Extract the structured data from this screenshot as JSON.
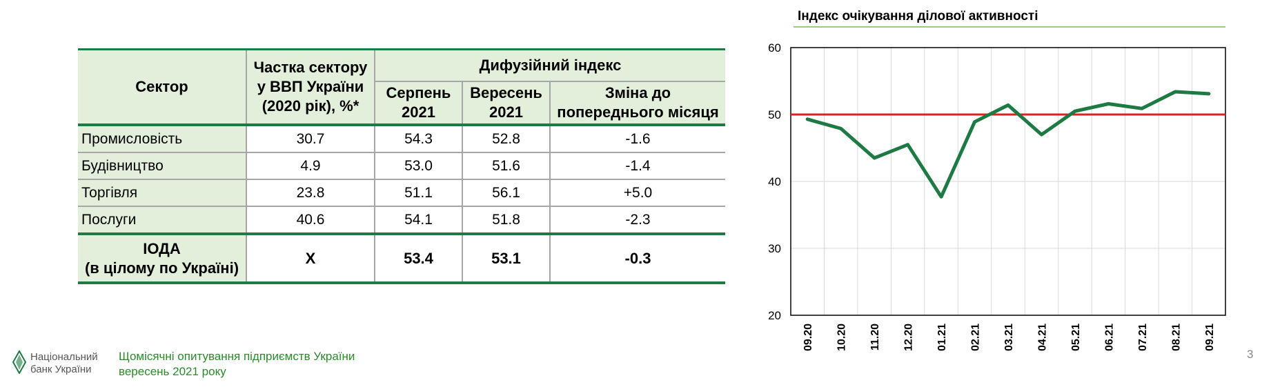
{
  "table": {
    "header": {
      "sector": "Сектор",
      "share": "Частка сектору у ВВП України (2020 рік), %*",
      "diffusion": "Дифузійний індекс",
      "aug": "Серпень 2021",
      "sep": "Вересень 2021",
      "change": "Зміна до попереднього місяця"
    },
    "rows": [
      {
        "sector": "Промисловість",
        "share": "30.7",
        "aug": "54.3",
        "sep": "52.8",
        "change": "-1.6"
      },
      {
        "sector": "Будівництво",
        "share": "4.9",
        "aug": "53.0",
        "sep": "51.6",
        "change": "-1.4"
      },
      {
        "sector": "Торгівля",
        "share": "23.8",
        "aug": "51.1",
        "sep": "56.1",
        "change": "+5.0"
      },
      {
        "sector": "Послуги",
        "share": "40.6",
        "aug": "54.1",
        "sep": "51.8",
        "change": "-2.3"
      }
    ],
    "total": {
      "sector_line1": "ІОДА",
      "sector_line2": "(в цілому по Україні)",
      "share": "X",
      "aug": "53.4",
      "sep": "53.1",
      "change": "-0.3"
    }
  },
  "chart_data": {
    "type": "line",
    "title": "Індекс очікування ділової активності",
    "categories": [
      "09.20",
      "10.20",
      "11.20",
      "12.20",
      "01.21",
      "02.21",
      "03.21",
      "04.21",
      "05.21",
      "06.21",
      "07.21",
      "08.21",
      "09.21"
    ],
    "values": [
      49.3,
      47.9,
      43.5,
      45.5,
      37.7,
      48.9,
      51.4,
      47.0,
      50.5,
      51.6,
      50.9,
      53.4,
      53.1
    ],
    "reference_line": 50,
    "ylim": [
      20,
      60
    ],
    "yticks": [
      "20",
      "30",
      "40",
      "50",
      "60"
    ],
    "grid": true,
    "colors": {
      "line": "#1e7a43",
      "reference": "#e02020",
      "grid": "#d9d9d9"
    }
  },
  "footer": {
    "bank_line1": "Національний",
    "bank_line2": "банк України",
    "survey_line1": "Щомісячні опитування підприємств України",
    "survey_line2": "вересень 2021 року",
    "page": "3"
  }
}
